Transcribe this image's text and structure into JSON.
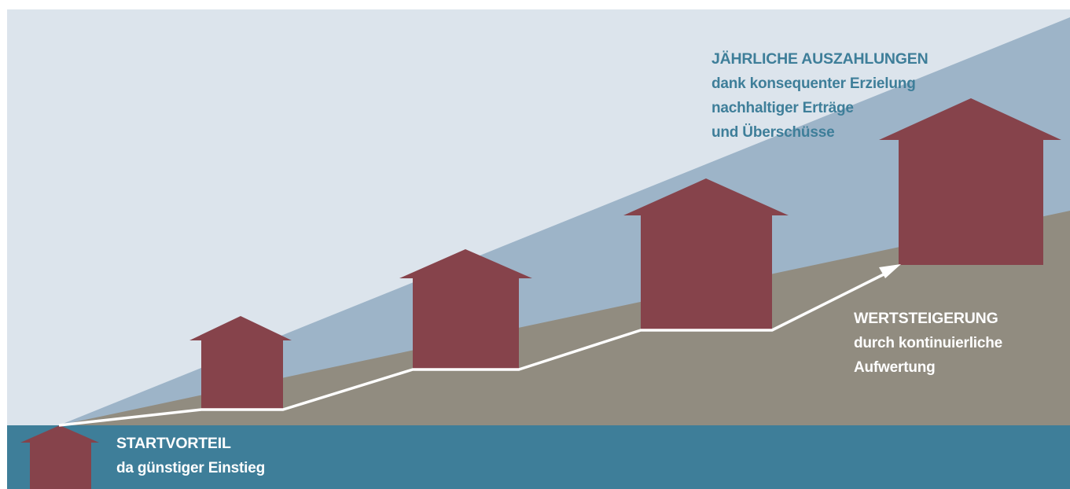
{
  "colors": {
    "background_sky": "#dce4ec",
    "auszahlungen_band": "#9db4c8",
    "wertsteigerung_band": "#918c80",
    "start_band": "#3e7e99",
    "house": "#86434b",
    "arrow": "#ffffff",
    "text_blue": "#3e7e99",
    "text_white": "#ffffff"
  },
  "icons": {
    "house": "house-icon",
    "arrow": "arrow-up-right-icon"
  },
  "labels": {
    "auszahlungen": {
      "title": "JÄHRLICHE AUSZAHLUNGEN",
      "lines": [
        "dank konsequenter Erzielung",
        "nachhaltiger Erträge",
        "und Überschüsse"
      ]
    },
    "wertsteigerung": {
      "title": "WERTSTEIGERUNG",
      "lines": [
        "durch kontinuierliche",
        "Aufwertung"
      ]
    },
    "startvorteil": {
      "title": "STARTVORTEIL",
      "lines": [
        "da günstiger Einstieg"
      ]
    }
  }
}
